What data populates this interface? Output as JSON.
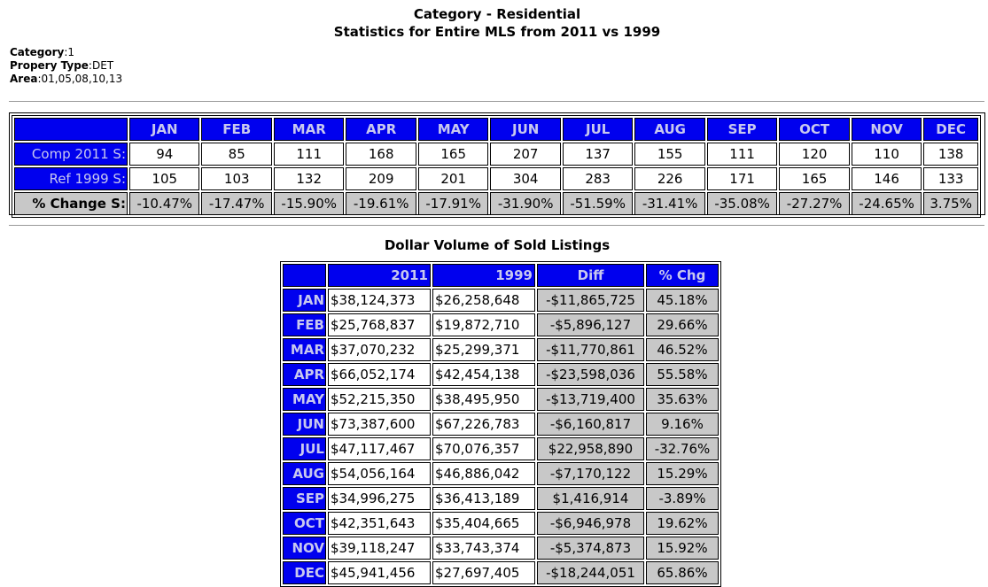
{
  "header": {
    "title": "Category - Residential",
    "subtitle": "Statistics for Entire MLS from 2011 vs 1999"
  },
  "meta": [
    {
      "label": "Category",
      "value": "1"
    },
    {
      "label": "Propery Type",
      "value": "DET"
    },
    {
      "label": "Area",
      "value": "01,05,08,10,13"
    }
  ],
  "stats": {
    "months": [
      "JAN",
      "FEB",
      "MAR",
      "APR",
      "MAY",
      "JUN",
      "JUL",
      "AUG",
      "SEP",
      "OCT",
      "NOV",
      "DEC"
    ],
    "rows": [
      {
        "label": "Comp 2011 S:",
        "values": [
          "94",
          "85",
          "111",
          "168",
          "165",
          "207",
          "137",
          "155",
          "111",
          "120",
          "110",
          "138"
        ]
      },
      {
        "label": "Ref 1999 S:",
        "values": [
          "105",
          "103",
          "132",
          "209",
          "201",
          "304",
          "283",
          "226",
          "171",
          "165",
          "146",
          "133"
        ]
      },
      {
        "label": "% Change S:",
        "values": [
          "-10.47%",
          "-17.47%",
          "-15.90%",
          "-19.61%",
          "-17.91%",
          "-31.90%",
          "-51.59%",
          "-31.41%",
          "-35.08%",
          "-27.27%",
          "-24.65%",
          "3.75%"
        ]
      }
    ]
  },
  "dollar_volume": {
    "title": "Dollar Volume of Sold Listings",
    "columns": [
      "2011",
      "1999",
      "Diff",
      "% Chg"
    ],
    "rows": [
      {
        "month": "JAN",
        "y2011": "$38,124,373",
        "y1999": "$26,258,648",
        "diff": "-$11,865,725",
        "pct": "45.18%"
      },
      {
        "month": "FEB",
        "y2011": "$25,768,837",
        "y1999": "$19,872,710",
        "diff": "-$5,896,127",
        "pct": "29.66%"
      },
      {
        "month": "MAR",
        "y2011": "$37,070,232",
        "y1999": "$25,299,371",
        "diff": "-$11,770,861",
        "pct": "46.52%"
      },
      {
        "month": "APR",
        "y2011": "$66,052,174",
        "y1999": "$42,454,138",
        "diff": "-$23,598,036",
        "pct": "55.58%"
      },
      {
        "month": "MAY",
        "y2011": "$52,215,350",
        "y1999": "$38,495,950",
        "diff": "-$13,719,400",
        "pct": "35.63%"
      },
      {
        "month": "JUN",
        "y2011": "$73,387,600",
        "y1999": "$67,226,783",
        "diff": "-$6,160,817",
        "pct": "9.16%"
      },
      {
        "month": "JUL",
        "y2011": "$47,117,467",
        "y1999": "$70,076,357",
        "diff": "$22,958,890",
        "pct": "-32.76%"
      },
      {
        "month": "AUG",
        "y2011": "$54,056,164",
        "y1999": "$46,886,042",
        "diff": "-$7,170,122",
        "pct": "15.29%"
      },
      {
        "month": "SEP",
        "y2011": "$34,996,275",
        "y1999": "$36,413,189",
        "diff": "$1,416,914",
        "pct": "-3.89%"
      },
      {
        "month": "OCT",
        "y2011": "$42,351,643",
        "y1999": "$35,404,665",
        "diff": "-$6,946,978",
        "pct": "19.62%"
      },
      {
        "month": "NOV",
        "y2011": "$39,118,247",
        "y1999": "$33,743,374",
        "diff": "-$5,374,873",
        "pct": "15.92%"
      },
      {
        "month": "DEC",
        "y2011": "$45,941,456",
        "y1999": "$27,697,405",
        "diff": "-$18,244,051",
        "pct": "65.86%"
      }
    ]
  }
}
